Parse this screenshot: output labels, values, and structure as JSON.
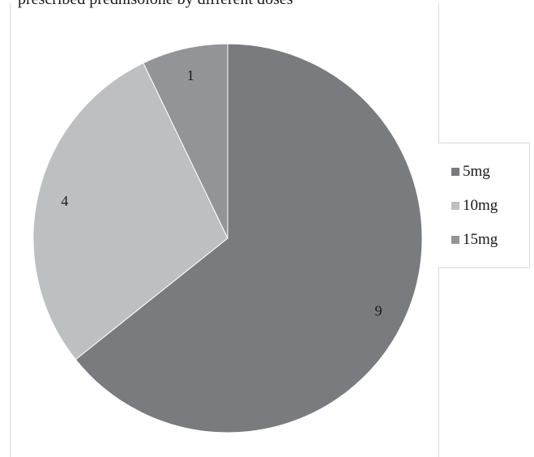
{
  "caption": "prescribed prednisolone by different doses",
  "chart_data": {
    "type": "pie",
    "title": "",
    "slices": [
      {
        "label": "5mg",
        "value": 9,
        "color": "#7a7b7e"
      },
      {
        "label": "10mg",
        "value": 4,
        "color": "#bebfc1"
      },
      {
        "label": "15mg",
        "value": 1,
        "color": "#939497"
      }
    ],
    "start": "12 o'clock",
    "direction": "clockwise",
    "show_values": true,
    "legend_position": "right"
  }
}
